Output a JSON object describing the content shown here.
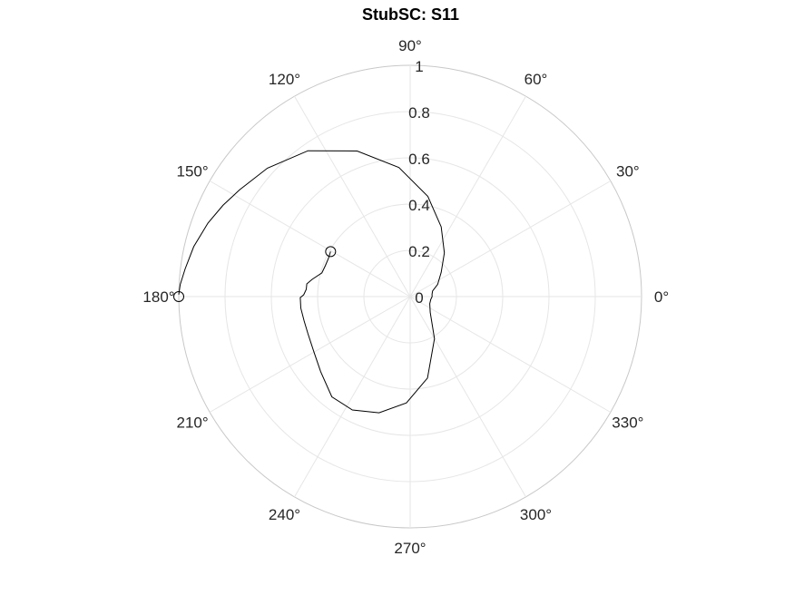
{
  "chart_data": {
    "type": "line",
    "coordinate_system": "polar",
    "title": "StubSC: S11",
    "rlim": [
      0,
      1
    ],
    "r_ticks": [
      0,
      0.2,
      0.4,
      0.6,
      0.8,
      1
    ],
    "r_tick_labels": [
      "0",
      "0.2",
      "0.4",
      "0.6",
      "0.8",
      "1"
    ],
    "theta_ticks_deg": [
      0,
      30,
      60,
      90,
      120,
      150,
      180,
      210,
      240,
      270,
      300,
      330
    ],
    "theta_tick_labels": [
      "0°",
      "30°",
      "60°",
      "90°",
      "120°",
      "150°",
      "180°",
      "210°",
      "240°",
      "270°",
      "300°",
      "330°"
    ],
    "grid": true,
    "series": [
      {
        "line_color": "#000000",
        "points_theta_deg": [
          150.5,
          155,
          160,
          165,
          170,
          173,
          176,
          179,
          180.5,
          186,
          193,
          200,
          210,
          220,
          232,
          243,
          255,
          268,
          282,
          300,
          322,
          340,
          352,
          0,
          6,
          14,
          24,
          38,
          52,
          66,
          80,
          95,
          110,
          125,
          138,
          148,
          154,
          160,
          167,
          173,
          177,
          179.5
        ],
        "points_r": [
          0.395,
          0.39,
          0.39,
          0.395,
          0.43,
          0.45,
          0.45,
          0.46,
          0.475,
          0.475,
          0.47,
          0.47,
          0.48,
          0.505,
          0.55,
          0.55,
          0.52,
          0.46,
          0.36,
          0.21,
          0.11,
          0.09,
          0.09,
          0.095,
          0.095,
          0.1,
          0.13,
          0.17,
          0.24,
          0.33,
          0.44,
          0.56,
          0.67,
          0.77,
          0.83,
          0.87,
          0.9,
          0.93,
          0.96,
          0.98,
          0.995,
          1.0
        ],
        "start_marker": {
          "theta_deg": 150.5,
          "r": 0.395
        },
        "end_marker": {
          "theta_deg": 180,
          "r": 1.0
        }
      }
    ]
  }
}
